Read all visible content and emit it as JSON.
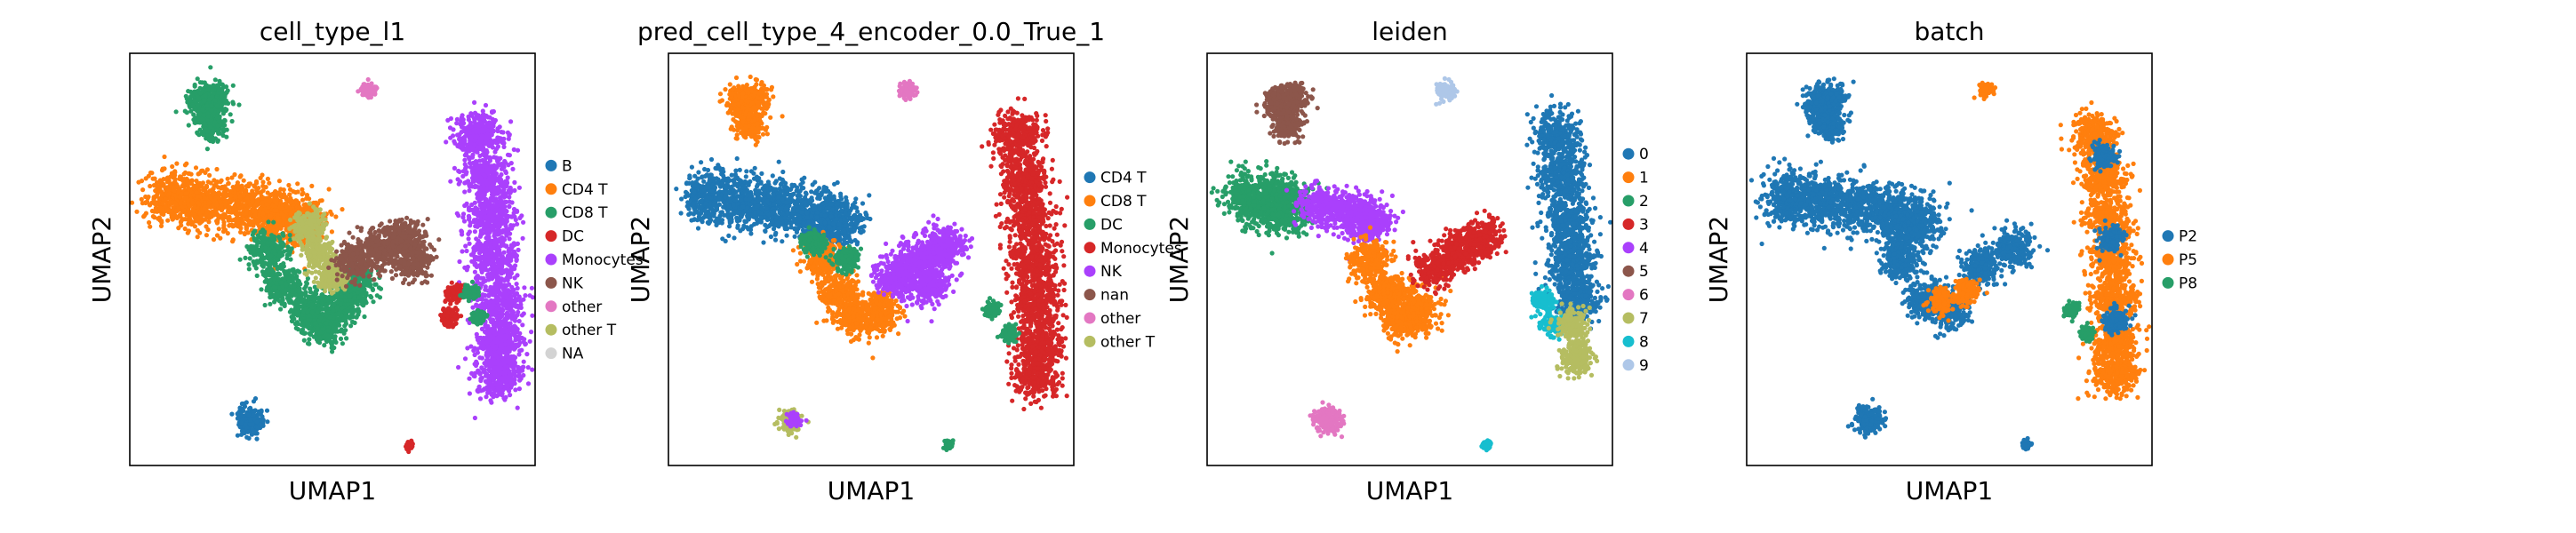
{
  "chart_data": [
    {
      "type": "scatter",
      "title": "cell_type_l1",
      "xlabel": "UMAP1",
      "ylabel": "UMAP2",
      "legend": "right",
      "legend_items": [
        {
          "label": "B",
          "color": "#1f77b4"
        },
        {
          "label": "CD4 T",
          "color": "#ff7f0e"
        },
        {
          "label": "CD8 T",
          "color": "#279e68"
        },
        {
          "label": "DC",
          "color": "#d62728"
        },
        {
          "label": "Monocytes",
          "color": "#aa40fc"
        },
        {
          "label": "NK",
          "color": "#8c564b"
        },
        {
          "label": "other",
          "color": "#e377c2"
        },
        {
          "label": "other T",
          "color": "#b5bd61"
        },
        {
          "label": "NA",
          "color": "#d3d3d3"
        }
      ],
      "clusters": [
        {
          "color": "#279e68",
          "points": [
            [
              0.18,
              0.12
            ],
            [
              0.2,
              0.17
            ],
            [
              0.21,
              0.11
            ]
          ],
          "r": 0.045
        },
        {
          "color": "#e377c2",
          "points": [
            [
              0.59,
              0.09
            ]
          ],
          "r": 0.022
        },
        {
          "color": "#ff7f0e",
          "points": [
            [
              0.1,
              0.35
            ],
            [
              0.18,
              0.36
            ],
            [
              0.27,
              0.37
            ],
            [
              0.36,
              0.39
            ],
            [
              0.42,
              0.41
            ]
          ],
          "r": 0.075
        },
        {
          "color": "#279e68",
          "points": [
            [
              0.34,
              0.48
            ],
            [
              0.38,
              0.56
            ],
            [
              0.44,
              0.62
            ],
            [
              0.48,
              0.66
            ],
            [
              0.52,
              0.61
            ],
            [
              0.56,
              0.56
            ]
          ],
          "r": 0.055
        },
        {
          "color": "#b5bd61",
          "points": [
            [
              0.44,
              0.42
            ],
            [
              0.46,
              0.48
            ],
            [
              0.5,
              0.54
            ]
          ],
          "r": 0.045
        },
        {
          "color": "#8c564b",
          "points": [
            [
              0.56,
              0.5
            ],
            [
              0.62,
              0.47
            ],
            [
              0.68,
              0.45
            ],
            [
              0.7,
              0.5
            ]
          ],
          "r": 0.055
        },
        {
          "color": "#aa40fc",
          "points": [
            [
              0.86,
              0.2
            ],
            [
              0.88,
              0.3
            ],
            [
              0.89,
              0.4
            ],
            [
              0.9,
              0.5
            ],
            [
              0.91,
              0.6
            ],
            [
              0.91,
              0.7
            ],
            [
              0.91,
              0.78
            ]
          ],
          "r": 0.07
        },
        {
          "color": "#d62728",
          "points": [
            [
              0.8,
              0.58
            ],
            [
              0.79,
              0.64
            ]
          ],
          "r": 0.025
        },
        {
          "color": "#279e68",
          "points": [
            [
              0.84,
              0.58
            ],
            [
              0.86,
              0.64
            ]
          ],
          "r": 0.02
        },
        {
          "color": "#1f77b4",
          "points": [
            [
              0.3,
              0.89
            ]
          ],
          "r": 0.04
        },
        {
          "color": "#d62728",
          "points": [
            [
              0.69,
              0.95
            ]
          ],
          "r": 0.012
        }
      ]
    },
    {
      "type": "scatter",
      "title": "pred_cell_type_4_encoder_0.0_True_1",
      "xlabel": "UMAP1",
      "ylabel": "UMAP2",
      "legend": "right",
      "legend_items": [
        {
          "label": "CD4 T",
          "color": "#1f77b4"
        },
        {
          "label": "CD8 T",
          "color": "#ff7f0e"
        },
        {
          "label": "DC",
          "color": "#279e68"
        },
        {
          "label": "Monocytes",
          "color": "#d62728"
        },
        {
          "label": "NK",
          "color": "#aa40fc"
        },
        {
          "label": "nan",
          "color": "#8c564b"
        },
        {
          "label": "other",
          "color": "#e377c2"
        },
        {
          "label": "other T",
          "color": "#b5bd61"
        }
      ],
      "clusters": [
        {
          "color": "#ff7f0e",
          "points": [
            [
              0.18,
              0.12
            ],
            [
              0.2,
              0.17
            ],
            [
              0.21,
              0.11
            ]
          ],
          "r": 0.045
        },
        {
          "color": "#e377c2",
          "points": [
            [
              0.59,
              0.09
            ]
          ],
          "r": 0.022
        },
        {
          "color": "#1f77b4",
          "points": [
            [
              0.1,
              0.35
            ],
            [
              0.18,
              0.36
            ],
            [
              0.27,
              0.37
            ],
            [
              0.36,
              0.39
            ],
            [
              0.42,
              0.41
            ]
          ],
          "r": 0.075
        },
        {
          "color": "#ff7f0e",
          "points": [
            [
              0.38,
              0.5
            ],
            [
              0.42,
              0.58
            ],
            [
              0.46,
              0.64
            ],
            [
              0.52,
              0.63
            ]
          ],
          "r": 0.055
        },
        {
          "color": "#279e68",
          "points": [
            [
              0.36,
              0.46
            ],
            [
              0.44,
              0.5
            ]
          ],
          "r": 0.035
        },
        {
          "color": "#aa40fc",
          "points": [
            [
              0.56,
              0.54
            ],
            [
              0.62,
              0.5
            ],
            [
              0.68,
              0.47
            ],
            [
              0.64,
              0.56
            ]
          ],
          "r": 0.06
        },
        {
          "color": "#d62728",
          "points": [
            [
              0.86,
              0.2
            ],
            [
              0.88,
              0.3
            ],
            [
              0.89,
              0.4
            ],
            [
              0.9,
              0.5
            ],
            [
              0.91,
              0.6
            ],
            [
              0.91,
              0.7
            ],
            [
              0.91,
              0.78
            ]
          ],
          "r": 0.07
        },
        {
          "color": "#279e68",
          "points": [
            [
              0.8,
              0.62
            ],
            [
              0.84,
              0.68
            ]
          ],
          "r": 0.022
        },
        {
          "color": "#b5bd61",
          "points": [
            [
              0.3,
              0.89
            ]
          ],
          "r": 0.03
        },
        {
          "color": "#aa40fc",
          "points": [
            [
              0.31,
              0.89
            ]
          ],
          "r": 0.02
        },
        {
          "color": "#279e68",
          "points": [
            [
              0.69,
              0.95
            ]
          ],
          "r": 0.012
        }
      ]
    },
    {
      "type": "scatter",
      "title": "leiden",
      "xlabel": "UMAP1",
      "ylabel": "UMAP2",
      "legend": "right",
      "legend_items": [
        {
          "label": "0",
          "color": "#1f77b4"
        },
        {
          "label": "1",
          "color": "#ff7f0e"
        },
        {
          "label": "2",
          "color": "#279e68"
        },
        {
          "label": "3",
          "color": "#d62728"
        },
        {
          "label": "4",
          "color": "#aa40fc"
        },
        {
          "label": "5",
          "color": "#8c564b"
        },
        {
          "label": "6",
          "color": "#e377c2"
        },
        {
          "label": "7",
          "color": "#b5bd61"
        },
        {
          "label": "8",
          "color": "#17becf"
        },
        {
          "label": "9",
          "color": "#aec7e8"
        }
      ],
      "clusters": [
        {
          "color": "#8c564b",
          "points": [
            [
              0.18,
              0.12
            ],
            [
              0.2,
              0.17
            ],
            [
              0.21,
              0.11
            ]
          ],
          "r": 0.045
        },
        {
          "color": "#aec7e8",
          "points": [
            [
              0.59,
              0.09
            ]
          ],
          "r": 0.025
        },
        {
          "color": "#279e68",
          "points": [
            [
              0.1,
              0.35
            ],
            [
              0.16,
              0.36
            ],
            [
              0.2,
              0.37
            ]
          ],
          "r": 0.075
        },
        {
          "color": "#aa40fc",
          "points": [
            [
              0.28,
              0.37
            ],
            [
              0.36,
              0.39
            ],
            [
              0.4,
              0.41
            ]
          ],
          "r": 0.06
        },
        {
          "color": "#ff7f0e",
          "points": [
            [
              0.4,
              0.5
            ],
            [
              0.44,
              0.58
            ],
            [
              0.48,
              0.64
            ],
            [
              0.52,
              0.62
            ]
          ],
          "r": 0.06
        },
        {
          "color": "#d62728",
          "points": [
            [
              0.56,
              0.52
            ],
            [
              0.62,
              0.48
            ],
            [
              0.68,
              0.45
            ]
          ],
          "r": 0.055
        },
        {
          "color": "#1f77b4",
          "points": [
            [
              0.86,
              0.2
            ],
            [
              0.88,
              0.3
            ],
            [
              0.89,
              0.4
            ],
            [
              0.9,
              0.5
            ],
            [
              0.91,
              0.6
            ]
          ],
          "r": 0.07
        },
        {
          "color": "#17becf",
          "points": [
            [
              0.83,
              0.6
            ],
            [
              0.85,
              0.66
            ]
          ],
          "r": 0.03
        },
        {
          "color": "#b5bd61",
          "points": [
            [
              0.9,
              0.66
            ],
            [
              0.91,
              0.74
            ]
          ],
          "r": 0.045
        },
        {
          "color": "#e377c2",
          "points": [
            [
              0.3,
              0.89
            ]
          ],
          "r": 0.04
        },
        {
          "color": "#17becf",
          "points": [
            [
              0.69,
              0.95
            ]
          ],
          "r": 0.012
        }
      ]
    },
    {
      "type": "scatter",
      "title": "batch",
      "xlabel": "UMAP1",
      "ylabel": "UMAP2",
      "legend": "right",
      "legend_items": [
        {
          "label": "P2",
          "color": "#1f77b4"
        },
        {
          "label": "P5",
          "color": "#ff7f0e"
        },
        {
          "label": "P8",
          "color": "#279e68"
        }
      ],
      "clusters": [
        {
          "color": "#1f77b4",
          "points": [
            [
              0.18,
              0.12
            ],
            [
              0.2,
              0.17
            ],
            [
              0.21,
              0.11
            ]
          ],
          "r": 0.045
        },
        {
          "color": "#ff7f0e",
          "points": [
            [
              0.59,
              0.09
            ]
          ],
          "r": 0.02
        },
        {
          "color": "#1f77b4",
          "points": [
            [
              0.1,
              0.35
            ],
            [
              0.18,
              0.36
            ],
            [
              0.27,
              0.37
            ],
            [
              0.36,
              0.39
            ],
            [
              0.42,
              0.41
            ]
          ],
          "r": 0.075
        },
        {
          "color": "#1f77b4",
          "points": [
            [
              0.38,
              0.5
            ],
            [
              0.44,
              0.6
            ],
            [
              0.5,
              0.62
            ],
            [
              0.58,
              0.52
            ],
            [
              0.66,
              0.47
            ]
          ],
          "r": 0.055
        },
        {
          "color": "#ff7f0e",
          "points": [
            [
              0.48,
              0.6
            ],
            [
              0.54,
              0.58
            ]
          ],
          "r": 0.035
        },
        {
          "color": "#ff7f0e",
          "points": [
            [
              0.86,
              0.2
            ],
            [
              0.88,
              0.3
            ],
            [
              0.89,
              0.4
            ],
            [
              0.9,
              0.5
            ],
            [
              0.91,
              0.6
            ],
            [
              0.91,
              0.7
            ],
            [
              0.91,
              0.78
            ]
          ],
          "r": 0.065
        },
        {
          "color": "#1f77b4",
          "points": [
            [
              0.88,
              0.25
            ],
            [
              0.9,
              0.45
            ],
            [
              0.91,
              0.65
            ]
          ],
          "r": 0.035
        },
        {
          "color": "#279e68",
          "points": [
            [
              0.8,
              0.62
            ],
            [
              0.84,
              0.68
            ]
          ],
          "r": 0.02
        },
        {
          "color": "#1f77b4",
          "points": [
            [
              0.3,
              0.89
            ]
          ],
          "r": 0.04
        },
        {
          "color": "#1f77b4",
          "points": [
            [
              0.69,
              0.95
            ]
          ],
          "r": 0.012
        }
      ]
    }
  ]
}
